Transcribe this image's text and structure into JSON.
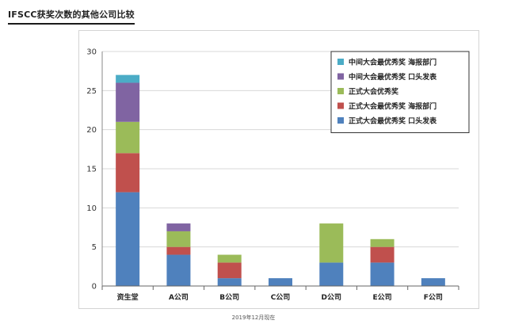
{
  "page": {
    "heading": "IFSCC获奖次数的其他公司比较",
    "footnote": "2019年12月现在"
  },
  "chart_data": {
    "type": "bar",
    "stacked": true,
    "title": "",
    "xlabel": "",
    "ylabel": "",
    "ylim": [
      0,
      30
    ],
    "yticks": [
      0,
      5,
      10,
      15,
      20,
      25,
      30
    ],
    "grid": true,
    "legend_position": "top-right",
    "categories": [
      "资生堂",
      "A公司",
      "B公司",
      "C公司",
      "D公司",
      "E公司",
      "F公司"
    ],
    "series": [
      {
        "name": "正式大会最优秀奖  口头发表",
        "color": "#4f81bd",
        "values": [
          12,
          4,
          1,
          1,
          3,
          3,
          1
        ]
      },
      {
        "name": "正式大会最优秀奖  海报部门",
        "color": "#c0504d",
        "values": [
          5,
          1,
          2,
          0,
          0,
          2,
          0
        ]
      },
      {
        "name": "正式大会优秀奖",
        "color": "#9bbb59",
        "values": [
          4,
          2,
          1,
          0,
          5,
          1,
          0
        ]
      },
      {
        "name": "中间大会最优秀奖  口头发表",
        "color": "#8064a2",
        "values": [
          5,
          1,
          0,
          0,
          0,
          0,
          0
        ]
      },
      {
        "name": "中间大会最优秀奖  海报部门",
        "color": "#4bacc6",
        "values": [
          1,
          0,
          0,
          0,
          0,
          0,
          0
        ]
      }
    ]
  }
}
